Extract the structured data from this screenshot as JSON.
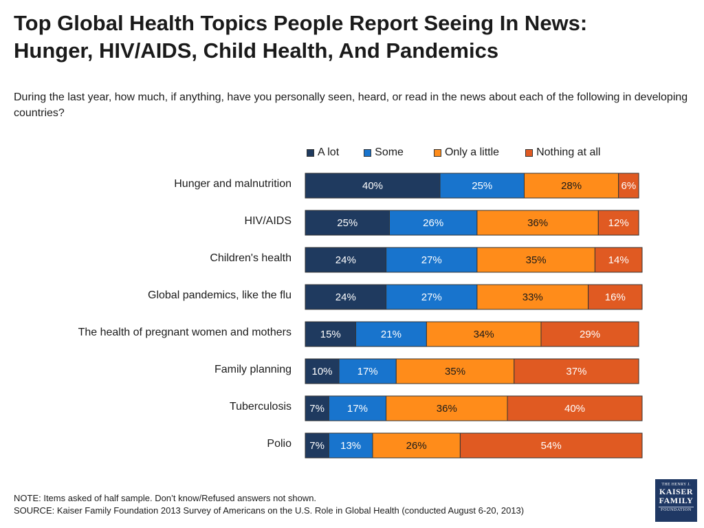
{
  "header": {
    "title_line1": "Top Global Health Topics People Report Seeing In News:",
    "title_line2": "Hunger, HIV/AIDS, Child Health, And Pandemics",
    "subtitle": "During the last year, how much, if anything, have you personally seen, heard, or read in the news about each of the following in developing countries?"
  },
  "colors": {
    "a_lot": "#1f3a5f",
    "some": "#1874cd",
    "only_a_little": "#ff8c1a",
    "nothing_at_all": "#e05a22",
    "bar_border": "#333333"
  },
  "chart_data": {
    "type": "bar",
    "orientation": "horizontal",
    "stacked": true,
    "legend_position": "top-right",
    "grid": false,
    "xlim": [
      0,
      100
    ],
    "categories": [
      "Hunger and malnutrition",
      "HIV/AIDS",
      "Children's health",
      "Global pandemics, like the flu",
      "The health of pregnant women and mothers",
      "Family planning",
      "Tuberculosis",
      "Polio"
    ],
    "series": [
      {
        "name": "A lot",
        "color": "#1f3a5f",
        "values": [
          40,
          25,
          24,
          24,
          15,
          10,
          7,
          7
        ]
      },
      {
        "name": "Some",
        "color": "#1874cd",
        "values": [
          25,
          26,
          27,
          27,
          21,
          17,
          17,
          13
        ]
      },
      {
        "name": "Only a little",
        "color": "#ff8c1a",
        "values": [
          28,
          36,
          35,
          33,
          34,
          35,
          36,
          26
        ]
      },
      {
        "name": "Nothing at all",
        "color": "#e05a22",
        "values": [
          6,
          12,
          14,
          16,
          29,
          37,
          40,
          54
        ]
      }
    ],
    "value_suffix": "%"
  },
  "footer": {
    "note": "NOTE: Items asked of half sample. Don’t know/Refused answers not shown.",
    "source": "SOURCE: Kaiser Family Foundation 2013 Survey of Americans on the U.S. Role in Global Health (conducted August 6-20, 2013)"
  },
  "logo": {
    "line1": "THE HENRY J.",
    "line2": "KAISER",
    "line3": "FAMILY",
    "line4": "FOUNDATION"
  }
}
